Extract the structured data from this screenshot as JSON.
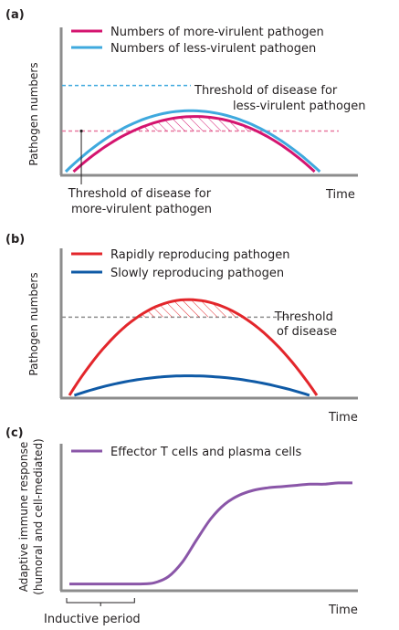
{
  "colors": {
    "axis": "#8c8c8c",
    "more_virulent": "#d4146f",
    "less_virulent": "#3fa9de",
    "rapid": "#e3262b",
    "slow": "#0f5aa6",
    "effector": "#8a56a8",
    "threshold_less": "#3fa9de",
    "threshold_more": "#e8789f",
    "threshold_b": "#8c8c8c"
  },
  "chart_data": [
    {
      "panel": "(a)",
      "type": "line",
      "xlabel": "Time",
      "ylabel": "Pathogen numbers",
      "xlim": [
        0,
        100
      ],
      "ylim": [
        0,
        100
      ],
      "series": [
        {
          "name": "Numbers of more-virulent pathogen",
          "color": "#d4146f",
          "x": [
            3,
            50,
            96
          ],
          "y": [
            0,
            57,
            0
          ]
        },
        {
          "name": "Numbers of less-virulent pathogen",
          "color": "#3fa9de",
          "x": [
            0,
            48,
            98
          ],
          "y": [
            0,
            63,
            0
          ]
        }
      ],
      "thresholds": [
        {
          "label": "Threshold of disease for less-virulent pathogen",
          "y": 89,
          "color": "#3fa9de"
        },
        {
          "label": "Threshold of disease for more-virulent pathogen",
          "y": 42,
          "color": "#e8789f"
        }
      ],
      "annotation": {
        "text": "Threshold of disease for more-virulent pathogen",
        "x": 6,
        "y": 42
      }
    },
    {
      "panel": "(b)",
      "type": "line",
      "xlabel": "Time",
      "ylabel": "Pathogen numbers",
      "xlim": [
        0,
        100
      ],
      "ylim": [
        0,
        100
      ],
      "series": [
        {
          "name": "Rapidly reproducing pathogen",
          "color": "#e3262b",
          "x": [
            0,
            48,
            100
          ],
          "y": [
            0,
            98,
            0
          ]
        },
        {
          "name": "Slowly reproducing pathogen",
          "color": "#0f5aa6",
          "x": [
            2,
            48,
            97
          ],
          "y": [
            0,
            20,
            0
          ]
        }
      ],
      "thresholds": [
        {
          "label": "Threshold of disease",
          "y": 80,
          "color": "#8c8c8c"
        }
      ]
    },
    {
      "panel": "(c)",
      "type": "line",
      "xlabel": "Time",
      "ylabel": "Adaptive immune response (humoral and cell-mediated)",
      "xlim": [
        0,
        100
      ],
      "ylim": [
        0,
        100
      ],
      "series": [
        {
          "name": "Effector T cells and plasma cells",
          "color": "#8a56a8",
          "x": [
            0,
            5,
            10,
            15,
            20,
            25,
            30,
            35,
            40,
            45,
            50,
            55,
            60,
            65,
            70,
            75,
            80,
            85,
            90,
            95,
            100
          ],
          "y": [
            4,
            4,
            4,
            4,
            4,
            4,
            5,
            10,
            22,
            40,
            57,
            69,
            76,
            80,
            82,
            83,
            84,
            85,
            85,
            86,
            86
          ]
        }
      ],
      "bracket": {
        "label": "Inductive period",
        "x_from": 0,
        "x_to": 23
      }
    }
  ]
}
